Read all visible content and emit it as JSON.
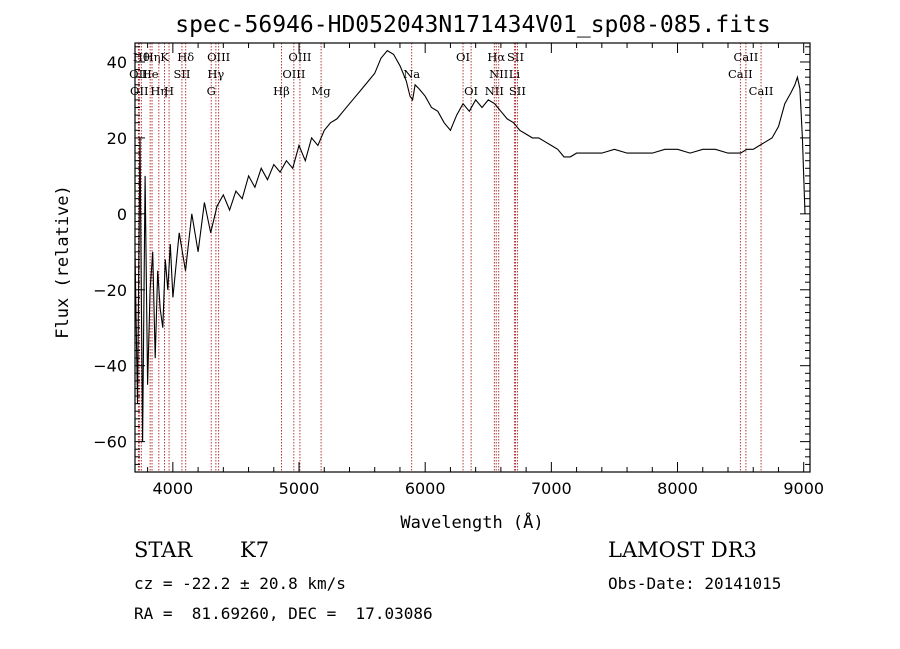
{
  "chart_data": {
    "type": "line",
    "title": "spec-56946-HD052043N171434V01_sp08-085.fits",
    "xlabel": "Wavelength (Å)",
    "ylabel": "Flux (relative)",
    "xlim": [
      3700,
      9050
    ],
    "ylim": [
      -68,
      45
    ],
    "xticks": [
      4000,
      5000,
      6000,
      7000,
      8000,
      9000
    ],
    "yticks": [
      -60,
      -40,
      -20,
      0,
      20,
      40
    ],
    "series": [
      {
        "name": "spectrum",
        "x": [
          3700,
          3720,
          3740,
          3760,
          3780,
          3800,
          3820,
          3840,
          3860,
          3880,
          3900,
          3920,
          3940,
          3960,
          3980,
          4000,
          4050,
          4100,
          4150,
          4200,
          4250,
          4300,
          4350,
          4400,
          4450,
          4500,
          4550,
          4600,
          4650,
          4700,
          4750,
          4800,
          4850,
          4900,
          4950,
          5000,
          5050,
          5100,
          5150,
          5200,
          5250,
          5300,
          5350,
          5400,
          5450,
          5500,
          5550,
          5600,
          5650,
          5700,
          5750,
          5800,
          5850,
          5880,
          5900,
          5920,
          5950,
          6000,
          6050,
          6100,
          6150,
          6200,
          6250,
          6300,
          6350,
          6400,
          6450,
          6500,
          6550,
          6600,
          6650,
          6700,
          6750,
          6800,
          6850,
          6900,
          6950,
          7000,
          7050,
          7100,
          7150,
          7200,
          7300,
          7400,
          7500,
          7600,
          7700,
          7800,
          7900,
          8000,
          8100,
          8200,
          8300,
          8400,
          8500,
          8550,
          8600,
          8650,
          8700,
          8750,
          8800,
          8850,
          8900,
          8930,
          8950,
          8970,
          8990,
          9000,
          9010
        ],
        "y": [
          -10,
          -50,
          20,
          -60,
          10,
          -45,
          -20,
          -10,
          -38,
          -15,
          -25,
          -30,
          -12,
          -20,
          -8,
          -22,
          -5,
          -15,
          0,
          -10,
          3,
          -5,
          2,
          5,
          1,
          6,
          4,
          10,
          7,
          12,
          9,
          13,
          11,
          14,
          12,
          18,
          14,
          20,
          18,
          22,
          24,
          25,
          27,
          29,
          31,
          33,
          35,
          37,
          41,
          43,
          42,
          39,
          35,
          31,
          30,
          34,
          33,
          31,
          28,
          27,
          24,
          22,
          26,
          29,
          27,
          30,
          28,
          30,
          29,
          27,
          25,
          24,
          22,
          21,
          20,
          20,
          19,
          18,
          17,
          15,
          15,
          16,
          16,
          16,
          17,
          16,
          16,
          16,
          17,
          17,
          16,
          17,
          17,
          16,
          16,
          17,
          17,
          18,
          19,
          20,
          23,
          29,
          32,
          34,
          36,
          33,
          20,
          10,
          0
        ]
      }
    ],
    "line_markers": [
      {
        "x": 3750,
        "row": 0,
        "label": "Hθ"
      },
      {
        "x": 3727,
        "row": 1,
        "label": "OII"
      },
      {
        "x": 3734,
        "row": 2,
        "label": "OII"
      },
      {
        "x": 3835,
        "row": 0,
        "label": "Hη"
      },
      {
        "x": 3820,
        "row": 1,
        "label": "He"
      },
      {
        "x": 3889,
        "row": 2,
        "label": "Hη"
      },
      {
        "x": 3934,
        "row": 0,
        "label": "K"
      },
      {
        "x": 3970,
        "row": 2,
        "label": "H"
      },
      {
        "x": 4072,
        "row": 1,
        "label": "SII"
      },
      {
        "x": 4102,
        "row": 0,
        "label": "Hδ"
      },
      {
        "x": 4304,
        "row": 2,
        "label": "G"
      },
      {
        "x": 4341,
        "row": 1,
        "label": "Hγ"
      },
      {
        "x": 4363,
        "row": 0,
        "label": "OIII"
      },
      {
        "x": 4861,
        "row": 2,
        "label": "Hβ"
      },
      {
        "x": 4959,
        "row": 1,
        "label": "OIII"
      },
      {
        "x": 5007,
        "row": 0,
        "label": "OIII"
      },
      {
        "x": 5175,
        "row": 2,
        "label": "Mg"
      },
      {
        "x": 5893,
        "row": 1,
        "label": "Na"
      },
      {
        "x": 6300,
        "row": 0,
        "label": "OI"
      },
      {
        "x": 6364,
        "row": 2,
        "label": "OI"
      },
      {
        "x": 6548,
        "row": 2,
        "label": "NII"
      },
      {
        "x": 6563,
        "row": 0,
        "label": "Hα"
      },
      {
        "x": 6583,
        "row": 1,
        "label": "NII"
      },
      {
        "x": 6707,
        "row": 1,
        "label": "Li"
      },
      {
        "x": 6716,
        "row": 0,
        "label": "SII"
      },
      {
        "x": 6731,
        "row": 2,
        "label": "SII"
      },
      {
        "x": 8498,
        "row": 1,
        "label": "CaII"
      },
      {
        "x": 8542,
        "row": 0,
        "label": "CaII"
      },
      {
        "x": 8662,
        "row": 2,
        "label": "CaII"
      }
    ]
  },
  "footer": {
    "object_class": "STAR",
    "subclass": "K7",
    "survey": "LAMOST DR3",
    "redshift": "cz = -22.2 ± 20.8 km/s",
    "obs_date": "Obs-Date: 20141015",
    "coords": "RA =  81.69260, DEC =  17.03086"
  },
  "colors": {
    "line": "#000000",
    "marker": "#b22222"
  }
}
